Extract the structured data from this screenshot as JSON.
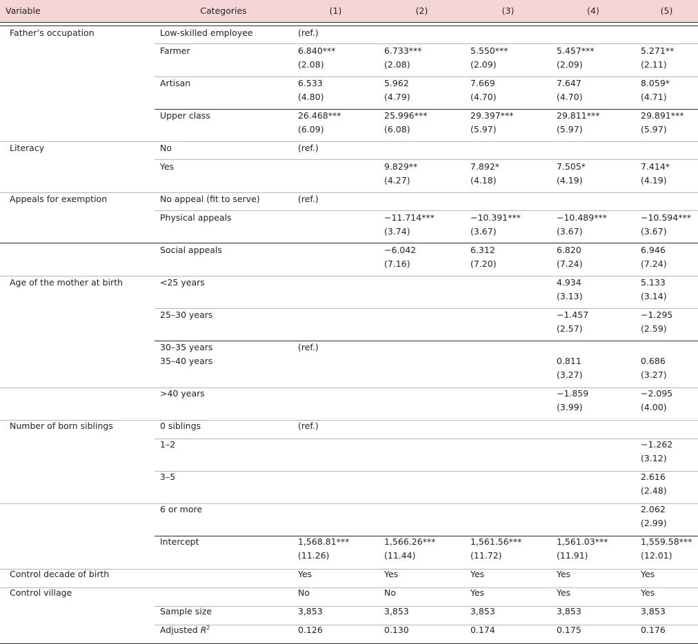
{
  "header": {
    "variable": "Variable",
    "categories": "Categories",
    "models": [
      "(1)",
      "(2)",
      "(3)",
      "(4)",
      "(5)"
    ]
  },
  "rows": [
    {
      "variable": "Father’s occupation",
      "category": "Low-skilled employee",
      "vals": [
        [
          "(ref.)"
        ],
        [],
        [],
        [],
        []
      ],
      "h": 27
    },
    {
      "variable": "",
      "category": "Farmer",
      "vals": [
        [
          "6.840***",
          "(2.08)"
        ],
        [
          "6.733***",
          "(2.08)"
        ],
        [
          "5.550***",
          "(2.09)"
        ],
        [
          "5.457***",
          "(2.09)"
        ],
        [
          "5.271**",
          "(2.11)"
        ]
      ],
      "h": 47
    },
    {
      "variable": "",
      "category": "Artisan",
      "vals": [
        [
          "6.533",
          "(4.80)"
        ],
        [
          "5.962",
          "(4.79)"
        ],
        [
          "7.669",
          "(4.70)"
        ],
        [
          "7.647",
          "(4.70)"
        ],
        [
          "8.059*",
          "(4.71)"
        ]
      ],
      "h": 47
    },
    {
      "variable": "",
      "category": "Upper class",
      "vals": [
        [
          "26.468***",
          "(6.09)"
        ],
        [
          "25.996***",
          "(6.08)"
        ],
        [
          "29.397***",
          "(5.97)"
        ],
        [
          "29.811***",
          "(5.97)"
        ],
        [
          "29.891***",
          "(5.97)"
        ]
      ],
      "h": 47
    },
    {
      "variable": "Literacy",
      "category": "No",
      "vals": [
        [
          "(ref.)"
        ],
        [],
        [],
        [],
        []
      ],
      "h": 27
    },
    {
      "variable": "",
      "category": "Yes",
      "vals": [
        [],
        [
          "9.829**",
          "(4.27)"
        ],
        [
          "7.892*",
          "(4.18)"
        ],
        [
          "7.505*",
          "(4.19)"
        ],
        [
          "7.414*",
          "(4.19)"
        ]
      ],
      "h": 47
    },
    {
      "variable": "Appeals for exemption",
      "category": "No appeal (fit to serve)",
      "vals": [
        [
          "(ref.)"
        ],
        [],
        [],
        [],
        []
      ],
      "h": 27
    },
    {
      "variable": "",
      "category": "Physical appeals",
      "vals": [
        [],
        [
          "−11.714***",
          "(3.74)"
        ],
        [
          "−10.391***",
          "(3.67)"
        ],
        [
          "−10.489***",
          "(3.67)"
        ],
        [
          "−10.594***",
          "(3.67)"
        ]
      ],
      "h": 47
    },
    {
      "variable": "",
      "category": "Social appeals",
      "vals": [
        [],
        [
          "−6.042",
          "(7.16)"
        ],
        [
          "6.312",
          "(7.20)"
        ],
        [
          "6.820",
          "(7.24)"
        ],
        [
          "6.946",
          "(7.24)"
        ]
      ],
      "h": 47
    },
    {
      "variable": "Age of the mother at birth",
      "category": "<25 years",
      "vals": [
        [],
        [],
        [],
        [
          "4.934",
          "(3.13)"
        ],
        [
          "5.133",
          "(3.14)"
        ]
      ],
      "h": 47
    },
    {
      "variable": "",
      "category": "25–30 years",
      "vals": [
        [],
        [],
        [],
        [
          "−1.457",
          "(2.57)"
        ],
        [
          "−1.295",
          "(2.59)"
        ]
      ],
      "h": 47
    },
    {
      "variable": "",
      "category": "30–35 years|35–40 years",
      "vals": [
        [
          "(ref.)"
        ],
        [],
        [],
        [
          "",
          "0.811",
          "(3.27)"
        ],
        [
          "",
          "0.686",
          "(3.27)"
        ]
      ],
      "h": 67
    },
    {
      "variable": "",
      "category": ">40 years",
      "vals": [
        [],
        [],
        [],
        [
          "−1.859",
          "(3.99)"
        ],
        [
          "−2.095",
          "(4.00)"
        ]
      ],
      "h": 47
    },
    {
      "variable": "Number of born siblings",
      "category": "0 siblings",
      "vals": [
        [
          "(ref.)"
        ],
        [],
        [],
        [],
        []
      ],
      "h": 27
    },
    {
      "variable": "",
      "category": "1–2",
      "vals": [
        [],
        [],
        [],
        [],
        [
          "−1.262",
          "(3.12)"
        ]
      ],
      "h": 47
    },
    {
      "variable": "",
      "category": "3–5",
      "vals": [
        [],
        [],
        [],
        [],
        [
          "2.616",
          "(2.48)"
        ]
      ],
      "h": 47
    },
    {
      "variable": "",
      "category": "6 or more",
      "vals": [
        [],
        [],
        [],
        [],
        [
          "2.062",
          "(2.99)"
        ]
      ],
      "h": 47
    },
    {
      "variable": "",
      "category": "Intercept",
      "vals": [
        [
          "1,568.81***",
          "(11.26)"
        ],
        [
          "1,566.26***",
          "(11.44)"
        ],
        [
          "1,561.56***",
          "(11.72)"
        ],
        [
          "1,561.03***",
          "(11.91)"
        ],
        [
          "1,559.58***",
          "(12.01)"
        ]
      ],
      "h": 47
    },
    {
      "variable": "Control decade of birth",
      "category": "",
      "vals": [
        [
          "Yes"
        ],
        [
          "Yes"
        ],
        [
          "Yes"
        ],
        [
          "Yes"
        ],
        [
          "Yes"
        ]
      ],
      "h": 27
    },
    {
      "variable": "Control village",
      "category": "",
      "vals": [
        [
          "No"
        ],
        [
          "No"
        ],
        [
          "Yes"
        ],
        [
          "Yes"
        ],
        [
          "Yes"
        ]
      ],
      "h": 27
    },
    {
      "variable": "",
      "category": "Sample size",
      "vals": [
        [
          "3,853"
        ],
        [
          "3,853"
        ],
        [
          "3,853"
        ],
        [
          "3,853"
        ],
        [
          "3,853"
        ]
      ],
      "h": 27
    },
    {
      "variable": "",
      "category": "Adjusted R^2",
      "vals": [
        [
          "0.126"
        ],
        [
          "0.130"
        ],
        [
          "0.174"
        ],
        [
          "0.175"
        ],
        [
          "0.176"
        ]
      ],
      "h": 27
    }
  ],
  "separators": [
    {
      "y": 37,
      "x0": 0,
      "x1": 1012,
      "tone": "dark"
    },
    {
      "y": 63,
      "x0": 224,
      "x1": 1012,
      "tone": "light"
    },
    {
      "y": 111,
      "x0": 224,
      "x1": 1012,
      "tone": "light"
    },
    {
      "y": 158,
      "x0": 224,
      "x1": 1012,
      "tone": "dark"
    },
    {
      "y": 205,
      "x0": 0,
      "x1": 1012,
      "tone": "light"
    },
    {
      "y": 231,
      "x0": 224,
      "x1": 1012,
      "tone": "light"
    },
    {
      "y": 279,
      "x0": 0,
      "x1": 1012,
      "tone": "light"
    },
    {
      "y": 305,
      "x0": 224,
      "x1": 1012,
      "tone": "light"
    },
    {
      "y": 352,
      "x0": 0,
      "x1": 1012,
      "tone": "dark"
    },
    {
      "y": 400,
      "x0": 0,
      "x1": 1012,
      "tone": "light"
    },
    {
      "y": 447,
      "x0": 224,
      "x1": 1012,
      "tone": "light"
    },
    {
      "y": 494,
      "x0": 224,
      "x1": 1012,
      "tone": "dark"
    },
    {
      "y": 562,
      "x0": 0,
      "x1": 1012,
      "tone": "light"
    },
    {
      "y": 609,
      "x0": 0,
      "x1": 1012,
      "tone": "light"
    },
    {
      "y": 636,
      "x0": 224,
      "x1": 1012,
      "tone": "light"
    },
    {
      "y": 683,
      "x0": 224,
      "x1": 1012,
      "tone": "light"
    },
    {
      "y": 730,
      "x0": 0,
      "x1": 1012,
      "tone": "light"
    },
    {
      "y": 777,
      "x0": 224,
      "x1": 1012,
      "tone": "dark"
    },
    {
      "y": 825,
      "x0": 0,
      "x1": 1012,
      "tone": "light"
    },
    {
      "y": 852,
      "x0": 0,
      "x1": 1012,
      "tone": "light"
    },
    {
      "y": 879,
      "x0": 224,
      "x1": 1012,
      "tone": "light"
    },
    {
      "y": 906,
      "x0": 224,
      "x1": 1012,
      "tone": "light"
    },
    {
      "y": 933,
      "x0": 0,
      "x1": 1012,
      "tone": "dark"
    }
  ]
}
